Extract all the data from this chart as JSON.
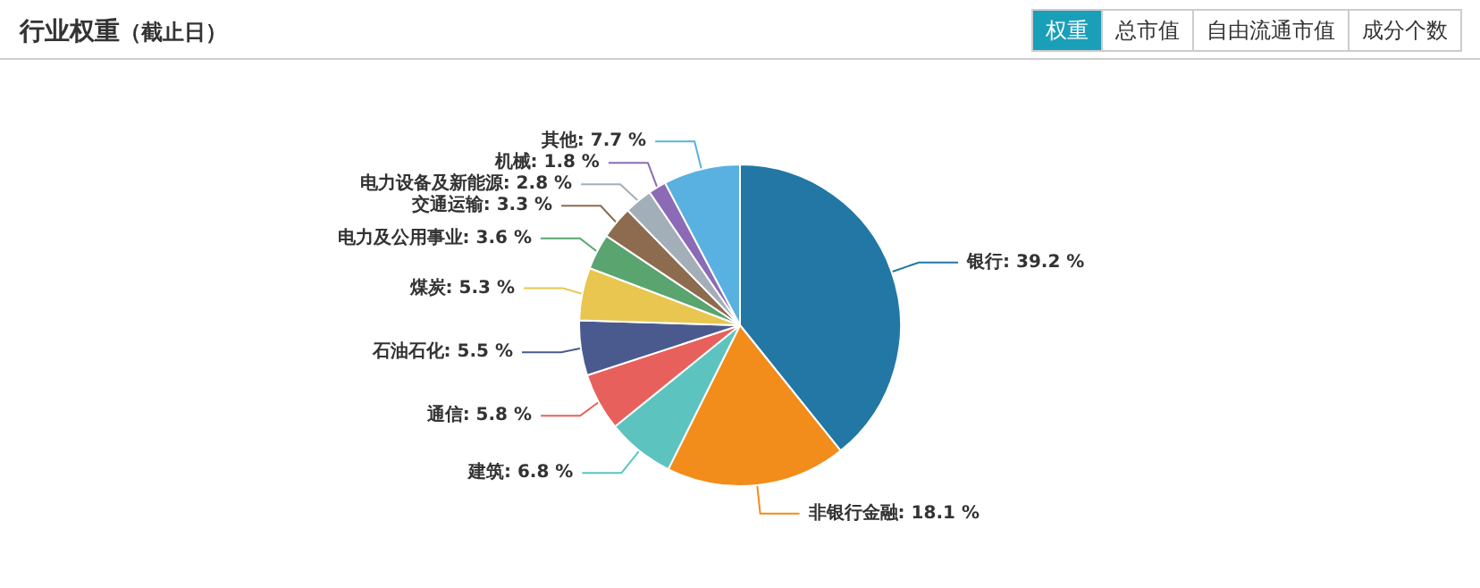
{
  "chart_data": {
    "type": "pie",
    "title": "行业权重",
    "subtitle": "（截止日）",
    "annotations": [
      "权重",
      "总市值",
      "自由流通市值",
      "成分个数"
    ],
    "categories": [
      "银行",
      "非银行金融",
      "建筑",
      "通信",
      "石油石化",
      "煤炭",
      "电力及公用事业",
      "交通运输",
      "电力设备及新能源",
      "机械",
      "其他"
    ],
    "values": [
      39.2,
      18.1,
      6.8,
      5.8,
      5.5,
      5.3,
      3.6,
      3.3,
      2.8,
      1.8,
      7.7
    ],
    "value_labels": [
      "39.2 %",
      "18.1 %",
      "6.8 %",
      "5.8 %",
      "5.5 %",
      "5.3 %",
      "3.6 %",
      "3.3 %",
      "2.8 %",
      "1.8 %",
      "7.7 %"
    ],
    "colors": [
      "#2277a5",
      "#f28c1a",
      "#5cc3bf",
      "#e8605c",
      "#4b5a8e",
      "#e8c64f",
      "#5aa46f",
      "#8c6b4f",
      "#a3afb8",
      "#8b6bb6",
      "#58b1e0"
    ],
    "legend": false
  }
}
